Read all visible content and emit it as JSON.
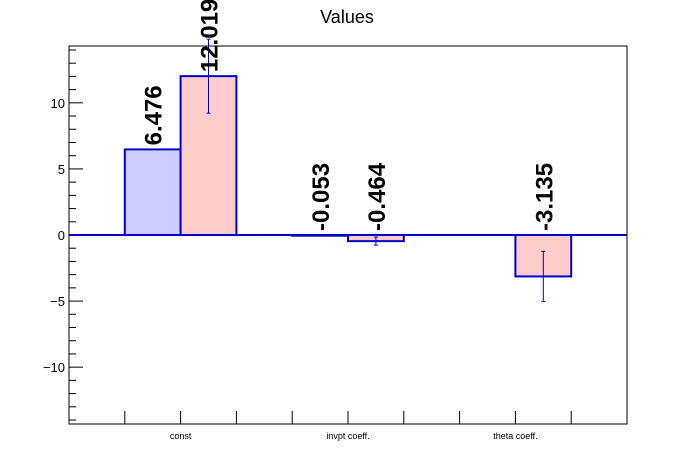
{
  "chart_data": {
    "type": "bar",
    "title": "Values",
    "categories": [
      "const",
      "invpt coeff.",
      "theta coeff."
    ],
    "series": [
      {
        "values": [
          6.476,
          -0.053,
          0
        ],
        "errors": [
          0,
          0,
          0
        ],
        "labels": [
          "6.476",
          "-0.053",
          ""
        ],
        "fill_color": "#ccccff",
        "edge_color": "#0000cc"
      },
      {
        "values": [
          12.019,
          -0.464,
          -3.135
        ],
        "errors": [
          2.8,
          0.3,
          1.9
        ],
        "labels": [
          "12.019",
          "-0.464",
          "-3.135"
        ],
        "fill_color": "#ffcccc",
        "edge_color": "#0000cc"
      }
    ],
    "ylim": [
      -14.3,
      14.3
    ],
    "yticks": [
      -10,
      -5,
      0,
      5,
      10
    ],
    "ytick_labels": [
      "−10",
      "−5",
      "0",
      "5",
      "10"
    ],
    "xlabel": "",
    "ylabel": "",
    "grid": false,
    "legend": "none",
    "zero_line_color": "#0000cc"
  }
}
